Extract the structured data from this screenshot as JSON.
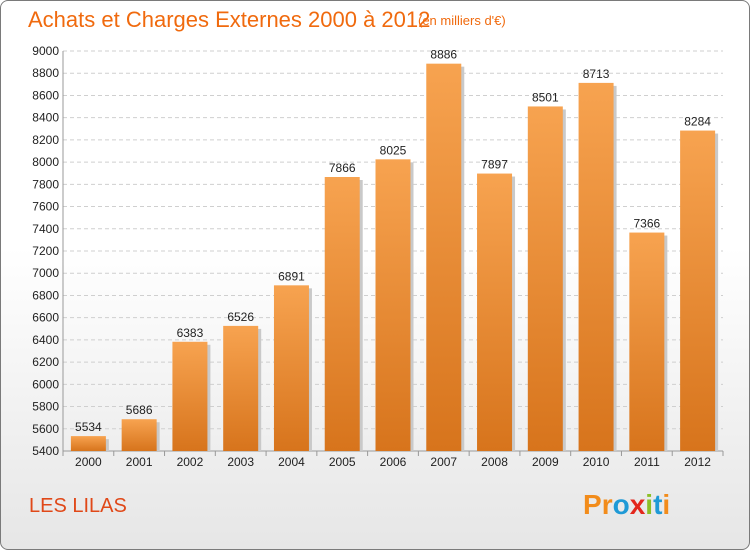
{
  "title": "Achats et Charges Externes 2000 à 2012",
  "subtitle": "(en milliers d'€)",
  "city": "LES LILAS",
  "logo": {
    "letters": [
      "P",
      "r",
      "o",
      "x",
      "i",
      "t",
      "i"
    ],
    "colors": [
      "#f28c1b",
      "#f28c1b",
      "#1f9ad6",
      "#e3271d",
      "#8cbf26",
      "#1f9ad6",
      "#f28c1b"
    ]
  },
  "chart_data": {
    "type": "bar",
    "categories": [
      "2000",
      "2001",
      "2002",
      "2003",
      "2004",
      "2005",
      "2006",
      "2007",
      "2008",
      "2009",
      "2010",
      "2011",
      "2012"
    ],
    "values": [
      5534,
      5686,
      6383,
      6526,
      6891,
      7866,
      8025,
      8886,
      7897,
      8501,
      8713,
      7366,
      8284
    ],
    "ylim": [
      5400,
      9000
    ],
    "yticks": [
      5400,
      5600,
      5800,
      6000,
      6200,
      6400,
      6600,
      6800,
      7000,
      7200,
      7400,
      7600,
      7800,
      8000,
      8200,
      8400,
      8600,
      8800,
      9000
    ],
    "grid": true,
    "bar_color": "#f08a2c"
  }
}
